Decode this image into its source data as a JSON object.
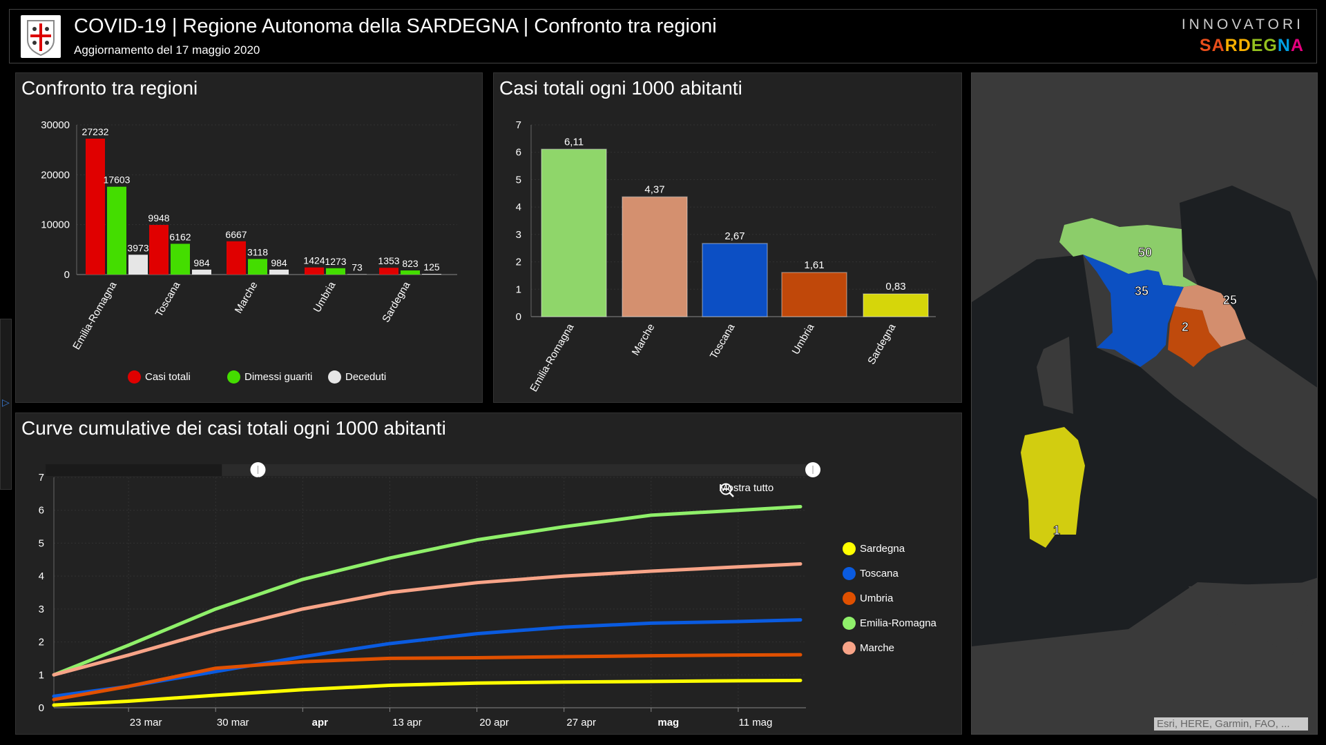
{
  "header": {
    "title": "COVID-19 | Regione Autonoma della SARDEGNA | Confronto tra regioni",
    "subtitle": "Aggiornamento del 17 maggio 2020",
    "logo_top": "INNOVATORI",
    "logo_bottom": "SARDEGNA"
  },
  "panels": {
    "p1_title": "Confronto tra regioni",
    "p2_title": "Casi totali ogni 1000 abitanti",
    "p3_title": "Curve cumulative dei casi totali ogni 1000 abitanti",
    "zoom_reset": "Mostra tutto"
  },
  "map": {
    "attribution": "Esri, HERE, Garmin, FAO, ...",
    "labels": {
      "emilia": "50",
      "toscana": "35",
      "marche": "25",
      "umbria": "2",
      "sardegna": "1"
    }
  },
  "chart_data": [
    {
      "type": "bar",
      "title": "Confronto tra regioni",
      "categories": [
        "Emilia-Romagna",
        "Toscana",
        "Marche",
        "Umbria",
        "Sardegna"
      ],
      "series": [
        {
          "name": "Casi totali",
          "color": "#e00000",
          "values": [
            27232,
            9948,
            6667,
            1424,
            1353
          ]
        },
        {
          "name": "Dimessi guariti",
          "color": "#44dd00",
          "values": [
            17603,
            6162,
            3118,
            1273,
            823
          ]
        },
        {
          "name": "Deceduti",
          "color": "#e6e6e6",
          "values": [
            3973,
            984,
            984,
            73,
            125
          ]
        }
      ],
      "ylim": [
        0,
        30000
      ],
      "yticks": [
        "0",
        "10000",
        "20000",
        "30000"
      ],
      "legend": "bottom"
    },
    {
      "type": "bar",
      "title": "Casi totali ogni 1000 abitanti",
      "categories": [
        "Emilia-Romagna",
        "Marche",
        "Toscana",
        "Umbria",
        "Sardegna"
      ],
      "values": [
        6.11,
        4.37,
        2.67,
        1.61,
        0.83
      ],
      "labels": [
        "6,11",
        "4,37",
        "2,67",
        "1,61",
        "0,83"
      ],
      "colors": [
        "#8fd66a",
        "#d4906f",
        "#0c4fc4",
        "#c0480a",
        "#d6d60a"
      ],
      "ylim": [
        0,
        7
      ],
      "yticks": [
        "0",
        "1",
        "2",
        "3",
        "4",
        "5",
        "6",
        "7"
      ]
    },
    {
      "type": "line",
      "title": "Curve cumulative dei casi totali ogni 1000 abitanti",
      "x_unit": "days since 17 mar",
      "x": [
        0,
        6,
        13,
        20,
        27,
        34,
        41,
        48,
        55,
        60
      ],
      "xticks": [
        {
          "d": 6,
          "label": "23 mar"
        },
        {
          "d": 13,
          "label": "30 mar"
        },
        {
          "d": 20,
          "label": "apr",
          "bold": true
        },
        {
          "d": 27,
          "label": "13 apr"
        },
        {
          "d": 34,
          "label": "20 apr"
        },
        {
          "d": 41,
          "label": "27 apr"
        },
        {
          "d": 48,
          "label": "mag",
          "bold": true
        },
        {
          "d": 55,
          "label": "11 mag"
        }
      ],
      "ylim": [
        0,
        7
      ],
      "yticks": [
        "0",
        "1",
        "2",
        "3",
        "4",
        "5",
        "6",
        "7"
      ],
      "legend": "right",
      "series": [
        {
          "name": "Sardegna",
          "color": "#ffff00",
          "values": [
            0.08,
            0.2,
            0.38,
            0.55,
            0.68,
            0.75,
            0.78,
            0.8,
            0.82,
            0.83
          ]
        },
        {
          "name": "Toscana",
          "color": "#0a5be0",
          "values": [
            0.35,
            0.65,
            1.1,
            1.55,
            1.95,
            2.25,
            2.45,
            2.57,
            2.62,
            2.67
          ]
        },
        {
          "name": "Umbria",
          "color": "#e05000",
          "values": [
            0.25,
            0.65,
            1.2,
            1.4,
            1.5,
            1.52,
            1.55,
            1.58,
            1.6,
            1.61
          ]
        },
        {
          "name": "Emilia-Romagna",
          "color": "#8ff06a",
          "values": [
            1.0,
            1.9,
            3.0,
            3.9,
            4.55,
            5.1,
            5.5,
            5.85,
            6.0,
            6.11
          ]
        },
        {
          "name": "Marche",
          "color": "#f8a488",
          "values": [
            1.0,
            1.6,
            2.35,
            3.0,
            3.5,
            3.8,
            4.0,
            4.15,
            4.28,
            4.37
          ]
        }
      ]
    }
  ]
}
